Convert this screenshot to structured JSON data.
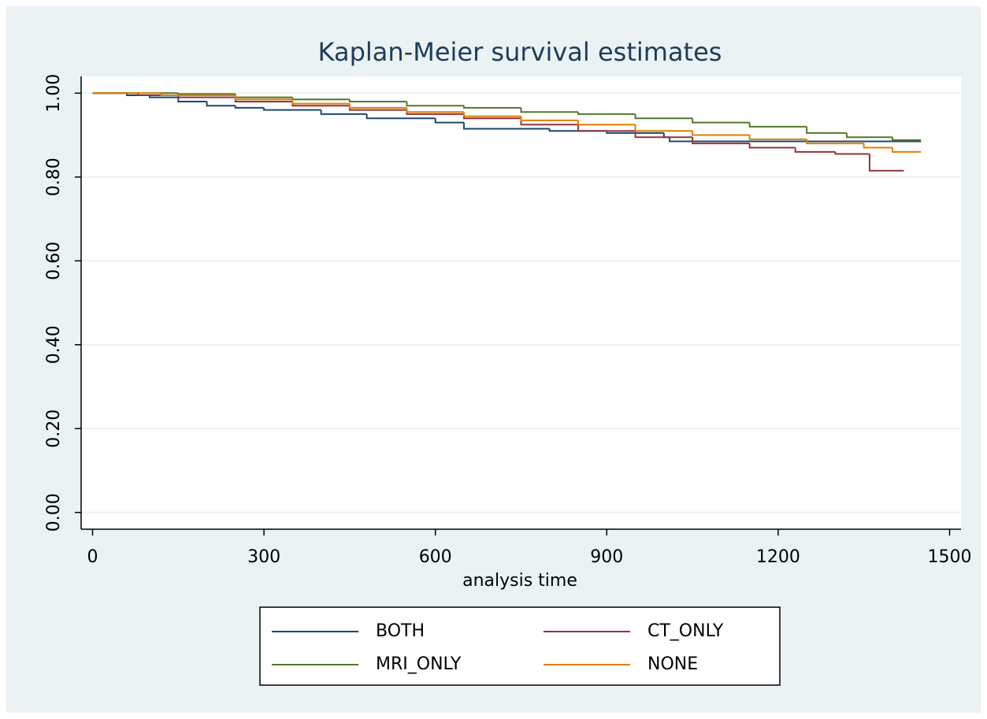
{
  "chart_data": {
    "type": "step",
    "title": "Kaplan-Meier survival estimates",
    "x_label": "analysis time",
    "xlim": [
      -20,
      1520
    ],
    "ylim": [
      -0.04,
      1.04
    ],
    "xticks": [
      0,
      300,
      600,
      900,
      1200,
      1500
    ],
    "yticks": [
      {
        "value": 0,
        "label": "0.00"
      },
      {
        "value": 0.2,
        "label": "0.20"
      },
      {
        "value": 0.4,
        "label": "0.40"
      },
      {
        "value": 0.6,
        "label": "0.60"
      },
      {
        "value": 0.8,
        "label": "0.80"
      },
      {
        "value": 1,
        "label": "1.00"
      }
    ],
    "grid": true,
    "legend_columns": 2,
    "series": [
      {
        "name": "BOTH",
        "color": "#1a476f",
        "x": [
          0,
          60,
          100,
          150,
          200,
          250,
          300,
          400,
          480,
          600,
          650,
          800,
          900,
          1000,
          1010,
          1450
        ],
        "values": [
          1,
          0.995,
          0.99,
          0.98,
          0.97,
          0.965,
          0.96,
          0.95,
          0.94,
          0.93,
          0.915,
          0.91,
          0.905,
          0.895,
          0.885,
          0.885
        ]
      },
      {
        "name": "CT_ONLY",
        "color": "#90353b",
        "x": [
          0,
          80,
          150,
          250,
          350,
          450,
          550,
          650,
          750,
          850,
          950,
          1050,
          1150,
          1230,
          1300,
          1360,
          1420
        ],
        "values": [
          1,
          0.995,
          0.99,
          0.98,
          0.97,
          0.96,
          0.95,
          0.94,
          0.925,
          0.91,
          0.895,
          0.88,
          0.87,
          0.86,
          0.855,
          0.815,
          0.815
        ]
      },
      {
        "name": "MRI_ONLY",
        "color": "#55752f",
        "x": [
          0,
          150,
          250,
          350,
          450,
          550,
          650,
          750,
          850,
          950,
          1050,
          1150,
          1250,
          1320,
          1400,
          1450
        ],
        "values": [
          1,
          0.998,
          0.99,
          0.985,
          0.98,
          0.97,
          0.965,
          0.955,
          0.95,
          0.94,
          0.93,
          0.92,
          0.905,
          0.895,
          0.888,
          0.888
        ]
      },
      {
        "name": "NONE",
        "color": "#e37e00",
        "x": [
          0,
          120,
          250,
          350,
          450,
          550,
          650,
          750,
          850,
          950,
          1050,
          1150,
          1250,
          1350,
          1400,
          1450
        ],
        "values": [
          1,
          0.995,
          0.985,
          0.975,
          0.965,
          0.955,
          0.945,
          0.935,
          0.925,
          0.91,
          0.9,
          0.89,
          0.88,
          0.87,
          0.86,
          0.86
        ]
      }
    ]
  }
}
